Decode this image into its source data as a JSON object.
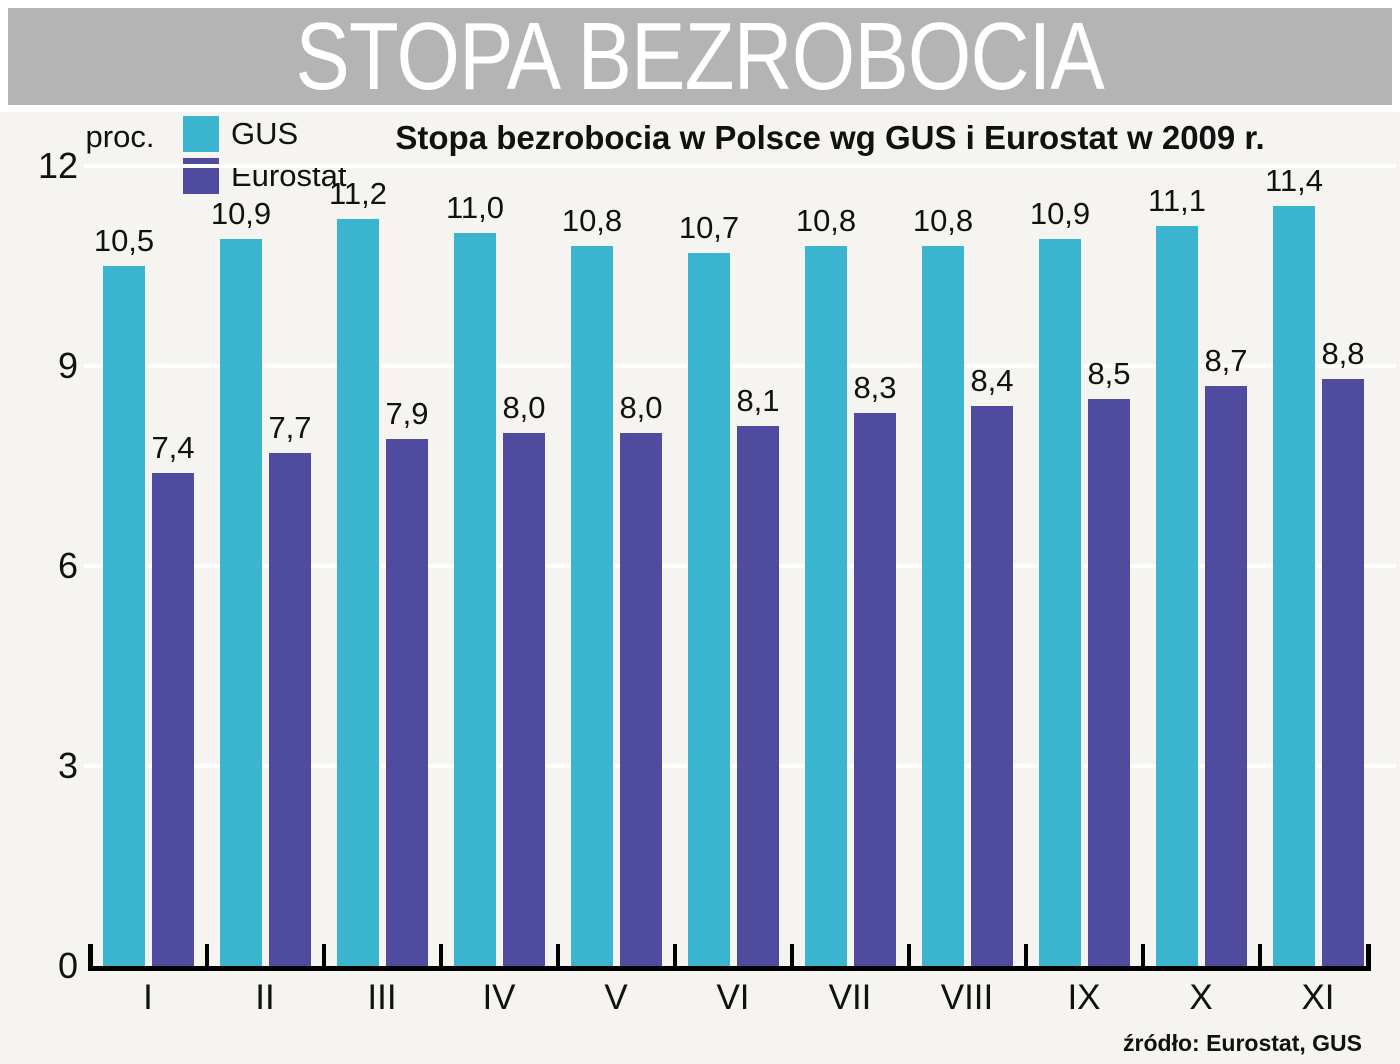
{
  "header": {
    "title": "STOPA BEZROBOCIA"
  },
  "source": "źródło: Eurostat, GUS",
  "colors": {
    "header_band": "#b4b4b4",
    "background": "#f6f4f0",
    "gridline": "#ffffff",
    "axis": "#000000"
  },
  "chart_data": {
    "type": "bar",
    "title": "Stopa bezrobocia w Polsce wg GUS i Eurostat w 2009 r.",
    "xlabel": "",
    "ylabel": "proc.",
    "categories": [
      "I",
      "II",
      "III",
      "IV",
      "V",
      "VI",
      "VII",
      "VIII",
      "IX",
      "X",
      "XI"
    ],
    "series": [
      {
        "name": "GUS",
        "color": "#3bb4cf",
        "values": [
          10.5,
          10.9,
          11.2,
          11.0,
          10.8,
          10.7,
          10.8,
          10.8,
          10.9,
          11.1,
          11.4
        ]
      },
      {
        "name": "Eurostat",
        "color": "#4f4ca0",
        "values": [
          7.4,
          7.7,
          7.9,
          8.0,
          8.0,
          8.1,
          8.3,
          8.4,
          8.5,
          8.7,
          8.8
        ]
      }
    ],
    "value_label_decimal_separator": ",",
    "y_ticks": [
      0,
      3,
      6,
      9,
      12
    ],
    "ylim": [
      0,
      12
    ],
    "grid": "horizontal",
    "legend_position": "top-left"
  }
}
